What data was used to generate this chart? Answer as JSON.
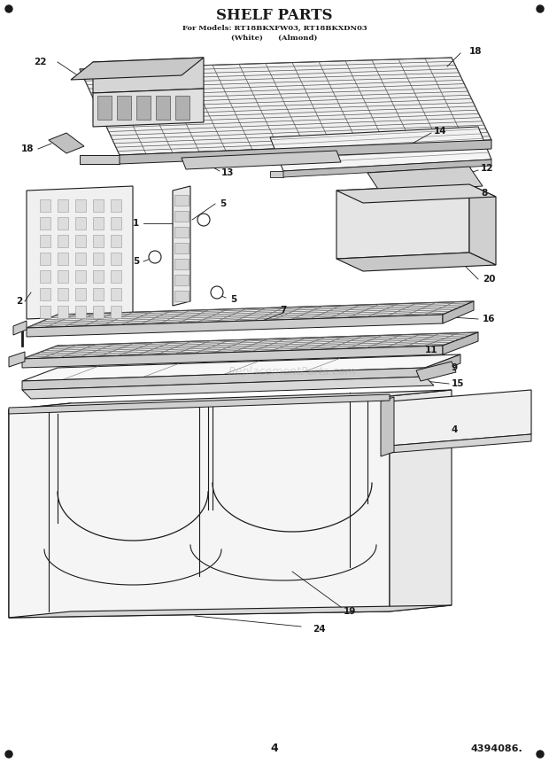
{
  "title": "SHELF PARTS",
  "subtitle1": "For Models: RT18BKXFW03, RT18BKXDN03",
  "subtitle2": "(White)      (Almond)",
  "page_number": "4",
  "part_number": "4394086.",
  "bg_color": "#ffffff",
  "line_color": "#1a1a1a",
  "watermark": "ReplacementParts.com"
}
